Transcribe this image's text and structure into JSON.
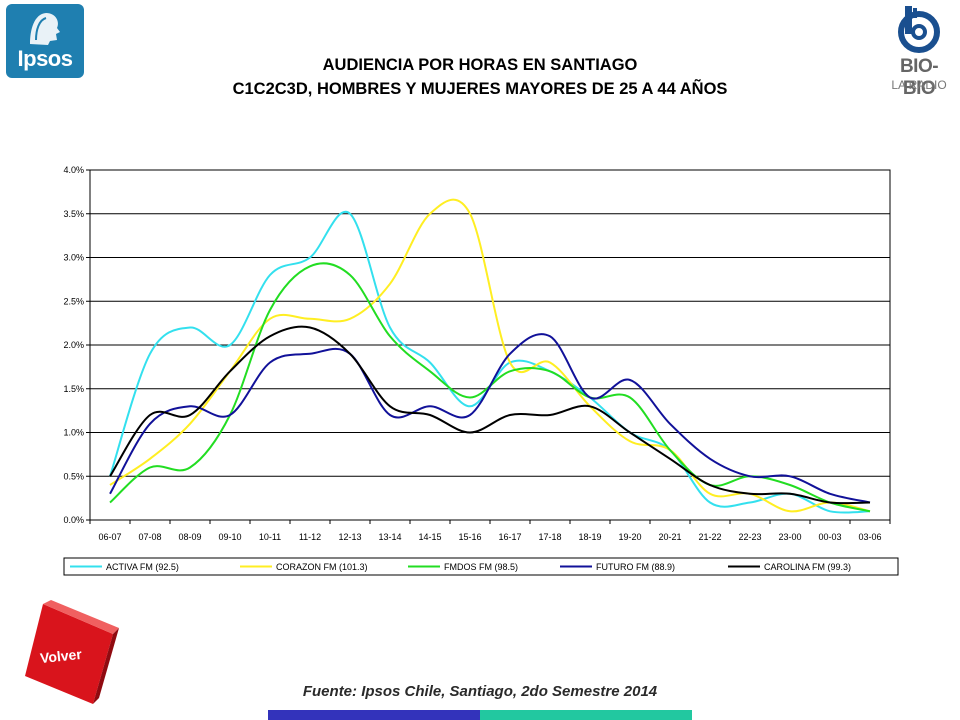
{
  "logos": {
    "ipsos_text": "Ipsos",
    "biobio_text": "BIO-BIO",
    "biobio_sub": "LA RADIO"
  },
  "header": {
    "title_line1": "AUDIENCIA POR HORAS EN SANTIAGO",
    "title_line2": "C1C2C3D, HOMBRES Y MUJERES MAYORES DE 25 A 44 AÑOS"
  },
  "nav": {
    "volver_label": "Volver"
  },
  "footer": {
    "source": "Fuente: Ipsos Chile, Santiago, 2do Semestre 2014"
  },
  "colors": {
    "footer_bar_left": "#3333bb",
    "footer_bar_right": "#22c8a0",
    "volver_red": "#d9141c",
    "ipsos_blue": "#1f7fb0"
  },
  "chart_data": {
    "type": "line",
    "ylim": [
      0,
      0.04
    ],
    "ytick_labels": [
      "0.0%",
      "0.5%",
      "1.0%",
      "1.5%",
      "2.0%",
      "2.5%",
      "3.0%",
      "3.5%",
      "4.0%"
    ],
    "grid": true,
    "legend_position": "bottom",
    "categories": [
      "06-07",
      "07-08",
      "08-09",
      "09-10",
      "10-11",
      "11-12",
      "12-13",
      "13-14",
      "14-15",
      "15-16",
      "16-17",
      "17-18",
      "18-19",
      "19-20",
      "20-21",
      "21-22",
      "22-23",
      "23-00",
      "00-03",
      "03-06"
    ],
    "series": [
      {
        "name": "ACTIVA FM (92.5)",
        "color": "#33e0ee",
        "values": [
          0.005,
          0.019,
          0.022,
          0.02,
          0.028,
          0.03,
          0.035,
          0.022,
          0.018,
          0.013,
          0.018,
          0.017,
          0.014,
          0.01,
          0.008,
          0.002,
          0.002,
          0.003,
          0.001,
          0.001
        ]
      },
      {
        "name": "CORAZON FM (101.3)",
        "color": "#ffee22",
        "values": [
          0.004,
          0.007,
          0.011,
          0.017,
          0.023,
          0.023,
          0.023,
          0.027,
          0.035,
          0.035,
          0.018,
          0.018,
          0.013,
          0.009,
          0.008,
          0.003,
          0.003,
          0.001,
          0.002,
          0.001
        ]
      },
      {
        "name": "FMDOS FM (98.5)",
        "color": "#22dd22",
        "values": [
          0.002,
          0.006,
          0.006,
          0.012,
          0.024,
          0.029,
          0.028,
          0.021,
          0.017,
          0.014,
          0.017,
          0.017,
          0.014,
          0.014,
          0.008,
          0.004,
          0.005,
          0.004,
          0.002,
          0.001
        ]
      },
      {
        "name": "FUTURO FM (88.9)",
        "color": "#111199",
        "values": [
          0.003,
          0.011,
          0.013,
          0.012,
          0.018,
          0.019,
          0.019,
          0.012,
          0.013,
          0.012,
          0.019,
          0.021,
          0.014,
          0.016,
          0.011,
          0.007,
          0.005,
          0.005,
          0.003,
          0.002
        ]
      },
      {
        "name": "CAROLINA FM (99.3)",
        "color": "#000000",
        "values": [
          0.005,
          0.012,
          0.012,
          0.017,
          0.021,
          0.022,
          0.019,
          0.013,
          0.012,
          0.01,
          0.012,
          0.012,
          0.013,
          0.01,
          0.007,
          0.004,
          0.003,
          0.003,
          0.002,
          0.002
        ]
      }
    ]
  }
}
